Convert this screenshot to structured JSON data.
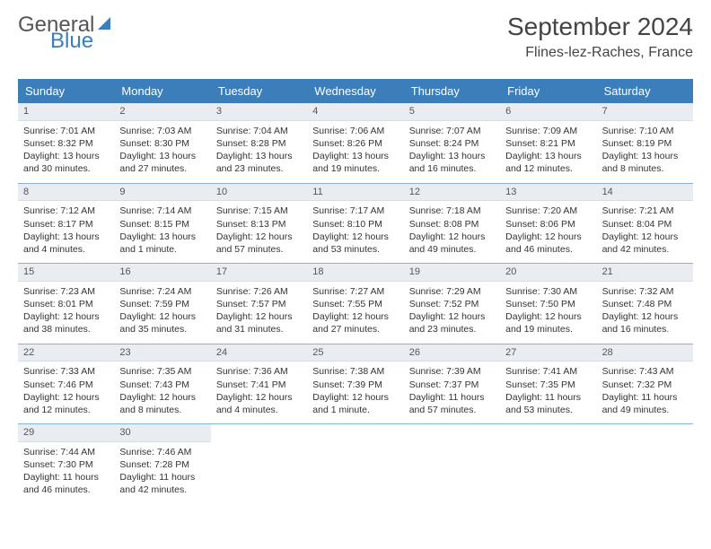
{
  "brand": {
    "part1": "General",
    "part2": "Blue"
  },
  "title": "September 2024",
  "location": "Flines-lez-Raches, France",
  "colors": {
    "header_bg": "#3b7eb9",
    "header_fg": "#ffffff",
    "daynum_bg": "#e9edf1",
    "row_sep": "#3b7eb9",
    "text": "#333333"
  },
  "weekdays": [
    "Sunday",
    "Monday",
    "Tuesday",
    "Wednesday",
    "Thursday",
    "Friday",
    "Saturday"
  ],
  "days": [
    {
      "n": 1,
      "sunrise": "7:01 AM",
      "sunset": "8:32 PM",
      "daylight": "13 hours and 30 minutes."
    },
    {
      "n": 2,
      "sunrise": "7:03 AM",
      "sunset": "8:30 PM",
      "daylight": "13 hours and 27 minutes."
    },
    {
      "n": 3,
      "sunrise": "7:04 AM",
      "sunset": "8:28 PM",
      "daylight": "13 hours and 23 minutes."
    },
    {
      "n": 4,
      "sunrise": "7:06 AM",
      "sunset": "8:26 PM",
      "daylight": "13 hours and 19 minutes."
    },
    {
      "n": 5,
      "sunrise": "7:07 AM",
      "sunset": "8:24 PM",
      "daylight": "13 hours and 16 minutes."
    },
    {
      "n": 6,
      "sunrise": "7:09 AM",
      "sunset": "8:21 PM",
      "daylight": "13 hours and 12 minutes."
    },
    {
      "n": 7,
      "sunrise": "7:10 AM",
      "sunset": "8:19 PM",
      "daylight": "13 hours and 8 minutes."
    },
    {
      "n": 8,
      "sunrise": "7:12 AM",
      "sunset": "8:17 PM",
      "daylight": "13 hours and 4 minutes."
    },
    {
      "n": 9,
      "sunrise": "7:14 AM",
      "sunset": "8:15 PM",
      "daylight": "13 hours and 1 minute."
    },
    {
      "n": 10,
      "sunrise": "7:15 AM",
      "sunset": "8:13 PM",
      "daylight": "12 hours and 57 minutes."
    },
    {
      "n": 11,
      "sunrise": "7:17 AM",
      "sunset": "8:10 PM",
      "daylight": "12 hours and 53 minutes."
    },
    {
      "n": 12,
      "sunrise": "7:18 AM",
      "sunset": "8:08 PM",
      "daylight": "12 hours and 49 minutes."
    },
    {
      "n": 13,
      "sunrise": "7:20 AM",
      "sunset": "8:06 PM",
      "daylight": "12 hours and 46 minutes."
    },
    {
      "n": 14,
      "sunrise": "7:21 AM",
      "sunset": "8:04 PM",
      "daylight": "12 hours and 42 minutes."
    },
    {
      "n": 15,
      "sunrise": "7:23 AM",
      "sunset": "8:01 PM",
      "daylight": "12 hours and 38 minutes."
    },
    {
      "n": 16,
      "sunrise": "7:24 AM",
      "sunset": "7:59 PM",
      "daylight": "12 hours and 35 minutes."
    },
    {
      "n": 17,
      "sunrise": "7:26 AM",
      "sunset": "7:57 PM",
      "daylight": "12 hours and 31 minutes."
    },
    {
      "n": 18,
      "sunrise": "7:27 AM",
      "sunset": "7:55 PM",
      "daylight": "12 hours and 27 minutes."
    },
    {
      "n": 19,
      "sunrise": "7:29 AM",
      "sunset": "7:52 PM",
      "daylight": "12 hours and 23 minutes."
    },
    {
      "n": 20,
      "sunrise": "7:30 AM",
      "sunset": "7:50 PM",
      "daylight": "12 hours and 19 minutes."
    },
    {
      "n": 21,
      "sunrise": "7:32 AM",
      "sunset": "7:48 PM",
      "daylight": "12 hours and 16 minutes."
    },
    {
      "n": 22,
      "sunrise": "7:33 AM",
      "sunset": "7:46 PM",
      "daylight": "12 hours and 12 minutes."
    },
    {
      "n": 23,
      "sunrise": "7:35 AM",
      "sunset": "7:43 PM",
      "daylight": "12 hours and 8 minutes."
    },
    {
      "n": 24,
      "sunrise": "7:36 AM",
      "sunset": "7:41 PM",
      "daylight": "12 hours and 4 minutes."
    },
    {
      "n": 25,
      "sunrise": "7:38 AM",
      "sunset": "7:39 PM",
      "daylight": "12 hours and 1 minute."
    },
    {
      "n": 26,
      "sunrise": "7:39 AM",
      "sunset": "7:37 PM",
      "daylight": "11 hours and 57 minutes."
    },
    {
      "n": 27,
      "sunrise": "7:41 AM",
      "sunset": "7:35 PM",
      "daylight": "11 hours and 53 minutes."
    },
    {
      "n": 28,
      "sunrise": "7:43 AM",
      "sunset": "7:32 PM",
      "daylight": "11 hours and 49 minutes."
    },
    {
      "n": 29,
      "sunrise": "7:44 AM",
      "sunset": "7:30 PM",
      "daylight": "11 hours and 46 minutes."
    },
    {
      "n": 30,
      "sunrise": "7:46 AM",
      "sunset": "7:28 PM",
      "daylight": "11 hours and 42 minutes."
    }
  ],
  "labels": {
    "sunrise": "Sunrise:",
    "sunset": "Sunset:",
    "daylight": "Daylight:"
  },
  "layout": {
    "cols": 7,
    "start_offset": 0,
    "total_cells": 35
  }
}
